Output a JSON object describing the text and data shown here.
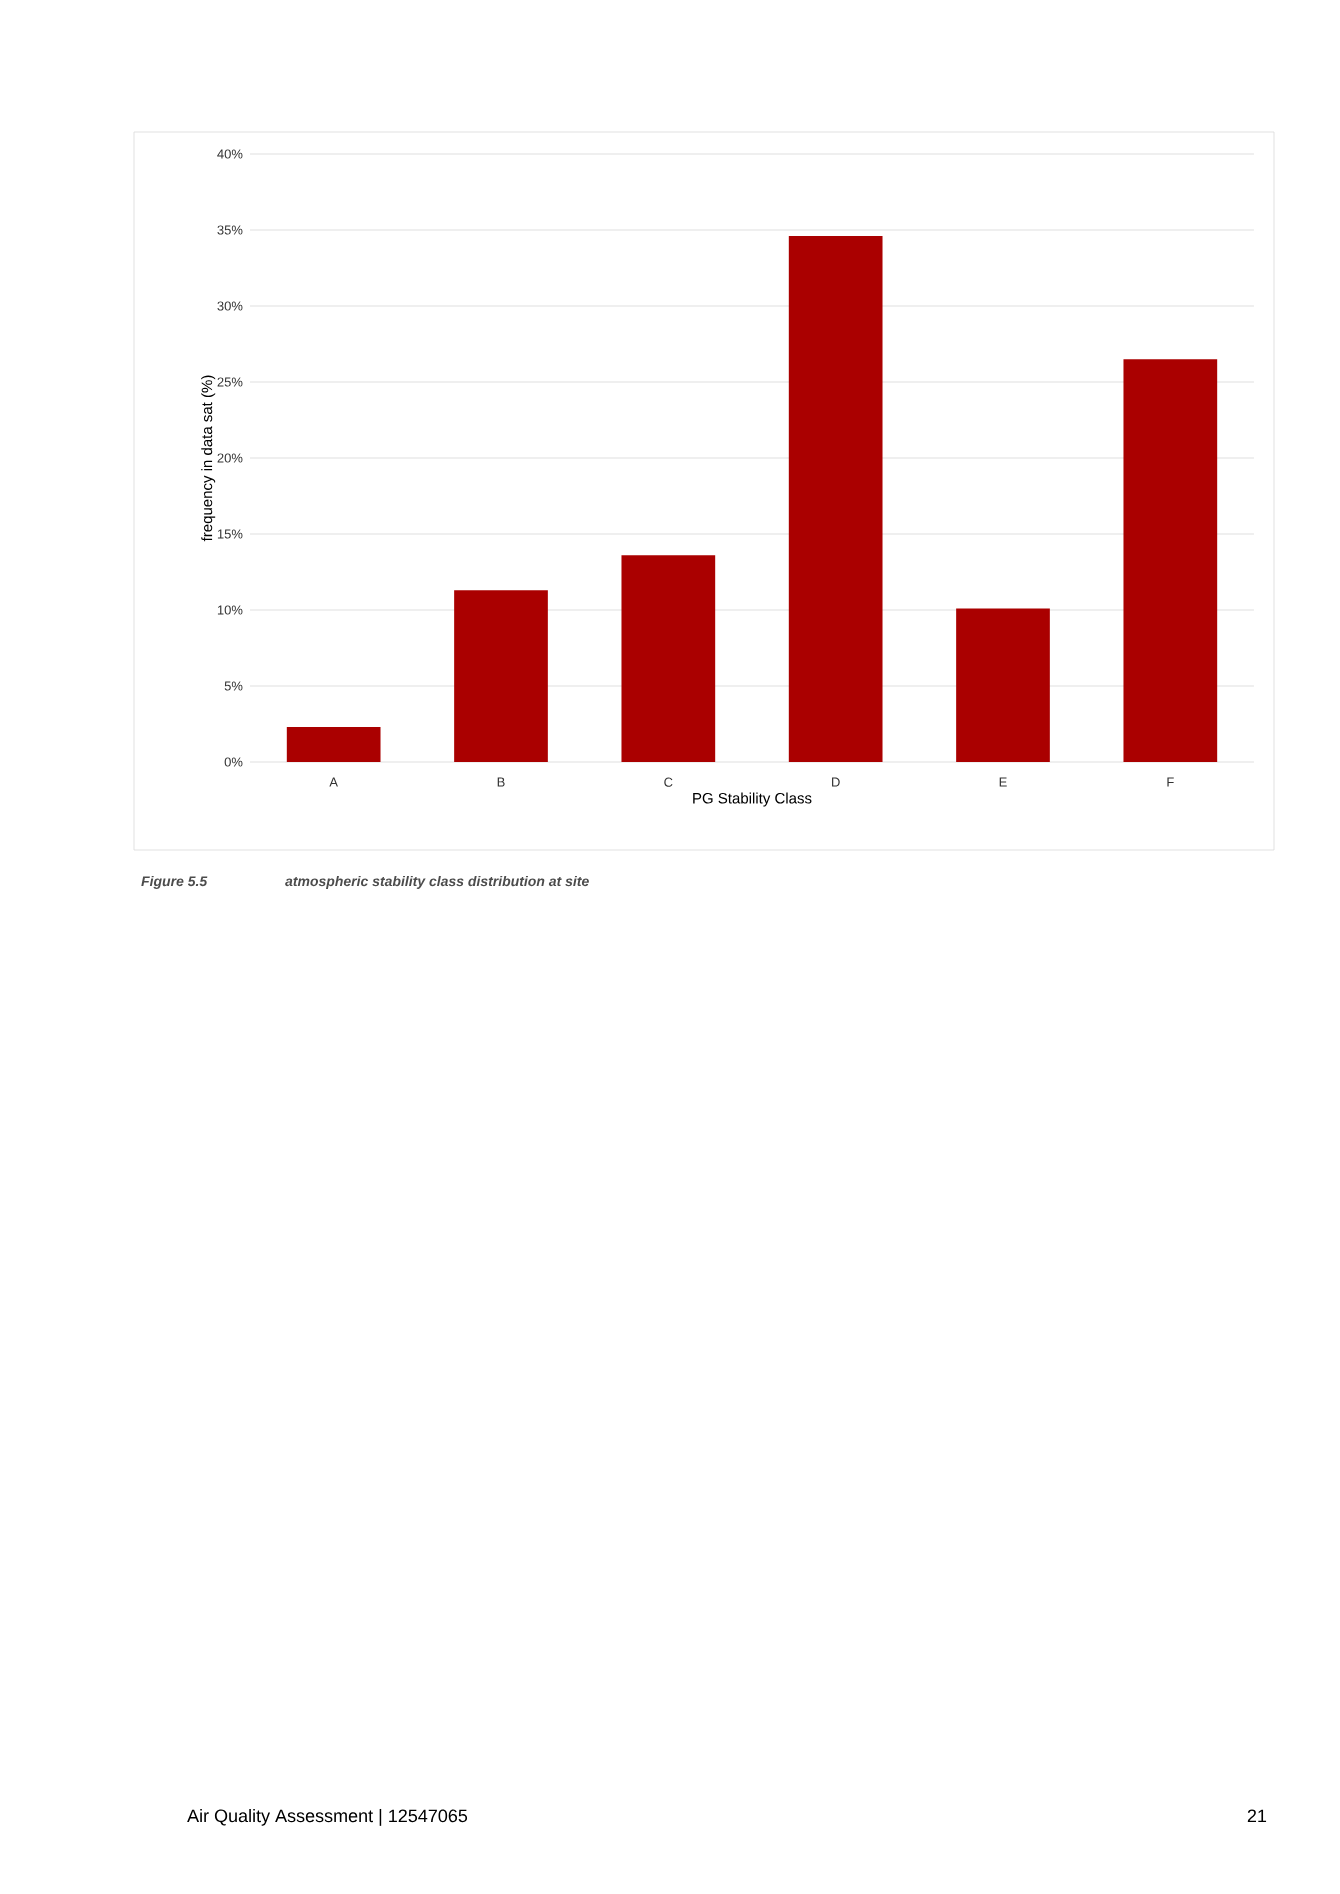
{
  "chart_data": {
    "type": "bar",
    "xlabel": "PG Stability Class",
    "ylabel": "frequency in data sat (%)",
    "categories": [
      "A",
      "B",
      "C",
      "D",
      "E",
      "F"
    ],
    "values": [
      2.3,
      11.3,
      13.6,
      34.6,
      10.1,
      26.5
    ],
    "color": "#aa0000",
    "ylim": [
      0,
      40
    ],
    "yticks": [
      {
        "value": 0,
        "label": "0%"
      },
      {
        "value": 5,
        "label": "5%"
      },
      {
        "value": 10,
        "label": "10%"
      },
      {
        "value": 15,
        "label": "15%"
      },
      {
        "value": 20,
        "label": "20%"
      },
      {
        "value": 25,
        "label": "25%"
      },
      {
        "value": 30,
        "label": "30%"
      },
      {
        "value": 35,
        "label": "35%"
      },
      {
        "value": 40,
        "label": "40%"
      }
    ],
    "grid": "y",
    "annotations": [
      "Figure 5.5",
      "atmospheric stability class distribution at site",
      "Air Quality Assessment | 12547065",
      "21"
    ]
  }
}
